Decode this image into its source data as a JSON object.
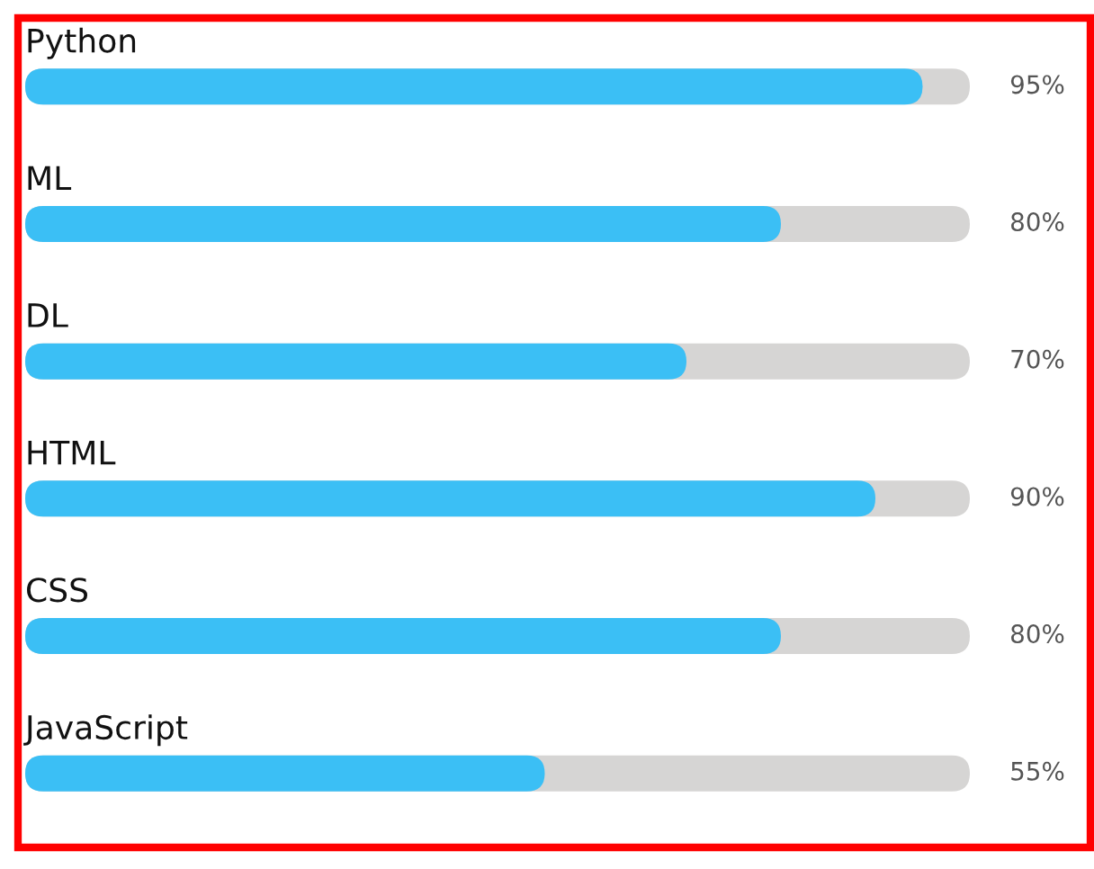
{
  "chart_data": {
    "type": "bar",
    "orientation": "horizontal",
    "categories": [
      "Python",
      "ML",
      "DL",
      "HTML",
      "CSS",
      "JavaScript"
    ],
    "values": [
      95,
      80,
      70,
      90,
      80,
      55
    ],
    "value_labels": [
      "95%",
      "80%",
      "70%",
      "90%",
      "80%",
      "55%"
    ],
    "color": "#3bbff5",
    "xlim": [
      0,
      100
    ],
    "tick_labels": false
  }
}
